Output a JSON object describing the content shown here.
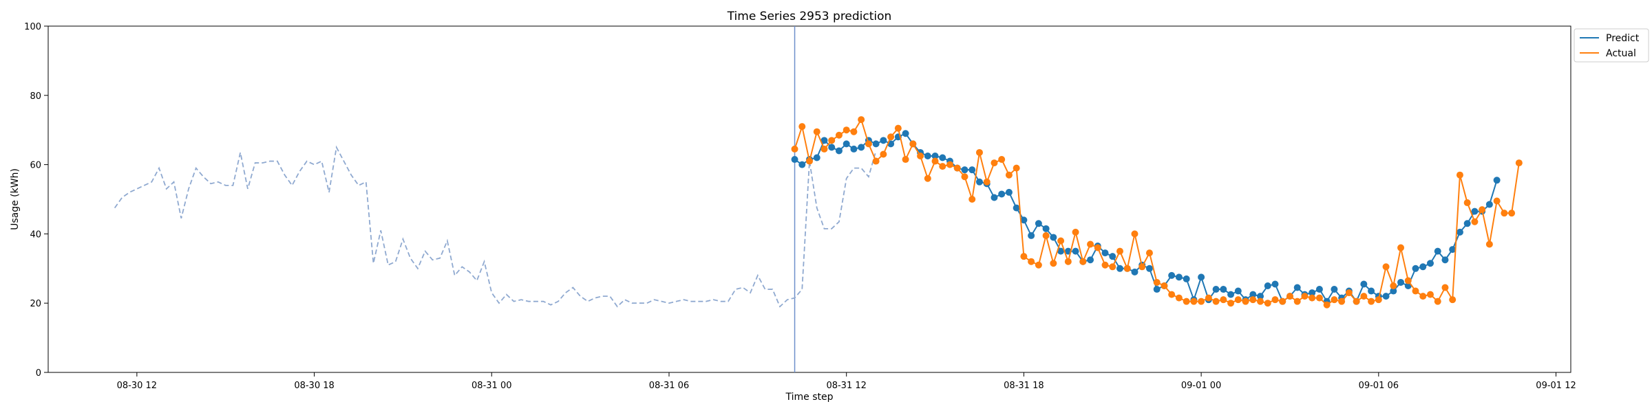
{
  "chart_data": {
    "type": "line",
    "title": "Time Series 2953 prediction",
    "xlabel": "Time step",
    "ylabel": "Usage (kWh)",
    "ylim": [
      0,
      100
    ],
    "xlim": [
      "2024-08-30 09:00",
      "2024-09-01 12:30"
    ],
    "x_ticks": [
      {
        "t": "2024-08-30 12:00",
        "label": "08-30 12"
      },
      {
        "t": "2024-08-30 18:00",
        "label": "08-30 18"
      },
      {
        "t": "2024-08-31 00:00",
        "label": "08-31 00"
      },
      {
        "t": "2024-08-31 06:00",
        "label": "08-31 06"
      },
      {
        "t": "2024-08-31 12:00",
        "label": "08-31 12"
      },
      {
        "t": "2024-08-31 18:00",
        "label": "08-31 18"
      },
      {
        "t": "2024-09-01 00:00",
        "label": "09-01 00"
      },
      {
        "t": "2024-09-01 06:00",
        "label": "09-01 06"
      },
      {
        "t": "2024-09-01 12:00",
        "label": "09-01 12"
      }
    ],
    "y_ticks": [
      0,
      20,
      40,
      60,
      80,
      100
    ],
    "forecast_start": "2024-08-31 10:15",
    "legend_position": "top-right",
    "grid": false,
    "history": {
      "start": "2024-08-30 11:15",
      "step_minutes": 15,
      "color": "#8fa9d0",
      "values": [
        47.5,
        50.5,
        52,
        53,
        54,
        55,
        59,
        53,
        55,
        44.5,
        53,
        59,
        56.5,
        54.5,
        55,
        54,
        54,
        63.5,
        53,
        60.5,
        60.5,
        61,
        61,
        57,
        54,
        58,
        61,
        60,
        61,
        52,
        65,
        61,
        57,
        54,
        55,
        31.5,
        41,
        31,
        32,
        38.5,
        33,
        30,
        35,
        32.5,
        33,
        38,
        28,
        30.5,
        29,
        26.5,
        32,
        23,
        20,
        22.5,
        20.5,
        21,
        20.5,
        20.5,
        20.5,
        19.5,
        20.5,
        23,
        24.5,
        22,
        20.5,
        21.5,
        22,
        22,
        19,
        21,
        20,
        20,
        20,
        21,
        20.5,
        20,
        20.5,
        21,
        20.5,
        20.5,
        20.5,
        21,
        20.5,
        20.5,
        24,
        24.5,
        23,
        28,
        24,
        24,
        19,
        21,
        21.5,
        24,
        61,
        47.5,
        41.5,
        41.5,
        43.5,
        56,
        59,
        59,
        56.5,
        64
      ]
    },
    "series": [
      {
        "name": "Predict",
        "color": "#1f77b4",
        "start": "2024-08-31 10:15",
        "step_minutes": 15,
        "values": [
          61.5,
          60,
          61.5,
          62,
          67,
          65,
          64,
          66,
          64.5,
          65,
          67,
          66,
          67,
          66,
          68,
          69,
          66,
          63.5,
          62.5,
          62.5,
          62,
          61,
          59,
          58.5,
          58.5,
          55,
          54.5,
          50.5,
          51.5,
          52,
          47.5,
          44,
          39.5,
          43,
          41.5,
          39,
          35,
          35,
          35,
          32,
          32.5,
          36.5,
          34.5,
          33.5,
          30,
          30,
          29,
          31,
          30,
          24,
          25,
          28,
          27.5,
          27,
          21,
          27.5,
          21,
          24,
          24,
          22.5,
          23.5,
          21,
          22.5,
          22,
          25,
          25.5,
          20.5,
          22,
          24.5,
          22.5,
          23,
          24,
          20.5,
          24,
          21.5,
          23.5,
          20.5,
          25.5,
          23.5,
          22,
          22,
          23.5,
          26,
          25,
          30,
          30.5,
          31.5,
          35,
          32.5,
          35.5,
          40.5,
          43,
          46.5,
          46.5,
          48.5,
          55.5
        ]
      },
      {
        "name": "Actual",
        "color": "#ff7f0e",
        "start": "2024-08-31 10:15",
        "step_minutes": 15,
        "values": [
          64.5,
          71,
          61,
          69.5,
          64.5,
          67,
          68.5,
          70,
          69.5,
          73,
          66,
          61,
          63,
          68,
          70.5,
          61.5,
          66,
          62.5,
          56,
          61,
          59.5,
          60,
          59,
          56.5,
          50,
          63.5,
          55,
          60.5,
          61.5,
          57,
          59,
          33.5,
          32,
          31,
          39.5,
          31.5,
          38,
          32,
          40.5,
          32,
          37,
          36,
          31,
          30.5,
          35,
          30,
          40,
          30.5,
          34.5,
          26,
          25,
          22.5,
          21.5,
          20.5,
          20.5,
          20.5,
          21.5,
          20.5,
          21,
          20,
          21,
          20.5,
          21,
          20.5,
          20,
          21,
          20.5,
          22,
          20.5,
          22,
          21.5,
          21.5,
          19.5,
          21,
          20.5,
          23,
          20.5,
          22,
          20.5,
          21,
          30.5,
          25,
          36,
          26.5,
          23.5,
          22,
          22.5,
          20.5,
          24.5,
          21,
          57,
          49,
          43.5,
          47,
          37,
          49.5,
          46,
          46,
          60.5
        ]
      }
    ]
  }
}
